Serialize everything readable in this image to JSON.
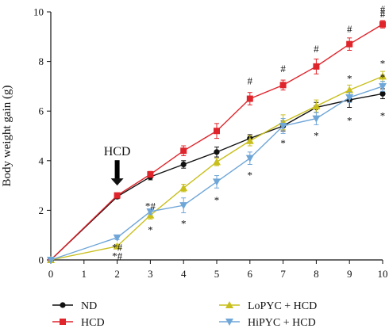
{
  "chart_data": {
    "type": "line",
    "title": "",
    "xlabel": "",
    "ylabel": "Body weight gain (g)",
    "x": [
      0,
      1,
      2,
      3,
      4,
      5,
      6,
      7,
      8,
      9,
      10
    ],
    "xlim": [
      0,
      10
    ],
    "ylim": [
      0,
      10
    ],
    "xticks": [
      "0",
      "1",
      "2",
      "3",
      "4",
      "5",
      "6",
      "7",
      "8",
      "9",
      "10"
    ],
    "yticks": [
      "0",
      "2",
      "4",
      "6",
      "8",
      "10"
    ],
    "grid": false,
    "legend_position": "bottom",
    "annotation": {
      "text": "HCD",
      "x": 2,
      "y": 2.55
    },
    "series": [
      {
        "name": "ND",
        "color": "#111111",
        "marker": "circle",
        "x": [
          0,
          2,
          3,
          4,
          5,
          6,
          7,
          8,
          9,
          10
        ],
        "y": [
          0,
          2.55,
          3.35,
          3.85,
          4.35,
          4.9,
          5.4,
          6.15,
          6.45,
          6.7
        ],
        "err": [
          0.05,
          0.08,
          0.12,
          0.15,
          0.2,
          0.15,
          0.2,
          0.2,
          0.3,
          0.2
        ]
      },
      {
        "name": "HCD",
        "color": "#e0242b",
        "marker": "square",
        "x": [
          0,
          2,
          3,
          4,
          5,
          6,
          7,
          8,
          9,
          10
        ],
        "y": [
          0,
          2.6,
          3.45,
          4.4,
          5.2,
          6.5,
          7.05,
          7.8,
          8.7,
          9.5
        ],
        "err": [
          0.05,
          0.08,
          0.12,
          0.2,
          0.3,
          0.25,
          0.2,
          0.3,
          0.25,
          0.15
        ]
      },
      {
        "name": "LoPYC + HCD",
        "color": "#c9bf1c",
        "marker": "triangle-up",
        "x": [
          0,
          2,
          3,
          4,
          5,
          6,
          7,
          8,
          9,
          10
        ],
        "y": [
          0,
          0.55,
          1.8,
          2.9,
          3.95,
          4.8,
          5.55,
          6.2,
          6.85,
          7.4
        ],
        "err": [
          0.05,
          0.08,
          0.15,
          0.15,
          0.15,
          0.2,
          0.3,
          0.25,
          0.2,
          0.2
        ]
      },
      {
        "name": "HiPYC + HCD",
        "color": "#6fa6d8",
        "marker": "triangle-down",
        "x": [
          0,
          2,
          3,
          4,
          5,
          6,
          7,
          8,
          9,
          10
        ],
        "y": [
          0,
          0.9,
          1.95,
          2.2,
          3.15,
          4.1,
          5.4,
          5.7,
          6.55,
          7.0
        ],
        "err": [
          0.05,
          0.08,
          0.1,
          0.3,
          0.25,
          0.25,
          0.3,
          0.25,
          0.2,
          0.2
        ]
      }
    ],
    "significance_marks": [
      {
        "x": 2,
        "y": 0.5,
        "text": "*#"
      },
      {
        "x": 2,
        "y": 0.15,
        "text": "*#"
      },
      {
        "x": 3,
        "y": 2.15,
        "text": "*#"
      },
      {
        "x": 3,
        "y": 1.2,
        "text": "*"
      },
      {
        "x": 4,
        "y": 1.45,
        "text": "*"
      },
      {
        "x": 5,
        "y": 2.4,
        "text": "*"
      },
      {
        "x": 6,
        "y": 3.4,
        "text": "*"
      },
      {
        "x": 6,
        "y": 7.2,
        "text": "#"
      },
      {
        "x": 7,
        "y": 7.7,
        "text": "#"
      },
      {
        "x": 7,
        "y": 4.7,
        "text": "*"
      },
      {
        "x": 8,
        "y": 8.5,
        "text": "#"
      },
      {
        "x": 8,
        "y": 5.0,
        "text": "*"
      },
      {
        "x": 9,
        "y": 9.3,
        "text": "#"
      },
      {
        "x": 9,
        "y": 7.3,
        "text": "*"
      },
      {
        "x": 9,
        "y": 5.6,
        "text": "*"
      },
      {
        "x": 10,
        "y": 10.1,
        "text": "#"
      },
      {
        "x": 10,
        "y": 9.9,
        "text": "#"
      },
      {
        "x": 10,
        "y": 7.9,
        "text": "*"
      },
      {
        "x": 10,
        "y": 7.35,
        "text": "*"
      },
      {
        "x": 10,
        "y": 5.8,
        "text": "*"
      }
    ]
  }
}
